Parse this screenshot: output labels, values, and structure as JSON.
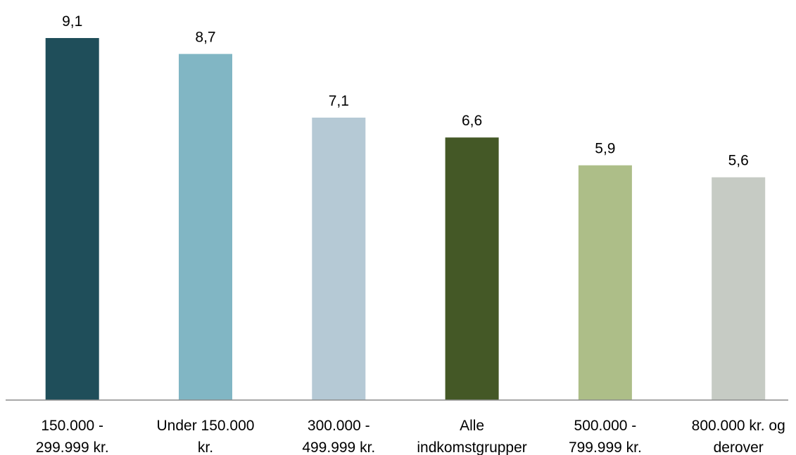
{
  "chart_data": {
    "type": "bar",
    "categories": [
      [
        "150.000 -",
        "299.999 kr."
      ],
      [
        "Under 150.000",
        "kr."
      ],
      [
        "300.000 -",
        "499.999 kr."
      ],
      [
        "Alle",
        "indkomstgrupper"
      ],
      [
        "500.000 -",
        "799.999 kr."
      ],
      [
        "800.000 kr. og",
        "derover"
      ]
    ],
    "values": [
      9.1,
      8.7,
      7.1,
      6.6,
      5.9,
      5.6
    ],
    "value_labels": [
      "9,1",
      "8,7",
      "7,1",
      "6,6",
      "5,9",
      "5,6"
    ],
    "colors": [
      "#1f4e5a",
      "#81b6c4",
      "#b5c9d5",
      "#445826",
      "#adbe88",
      "#c6cbc4"
    ],
    "title": "",
    "xlabel": "",
    "ylabel": "",
    "ylim": [
      0,
      10
    ],
    "grid": false,
    "legend": "none"
  }
}
